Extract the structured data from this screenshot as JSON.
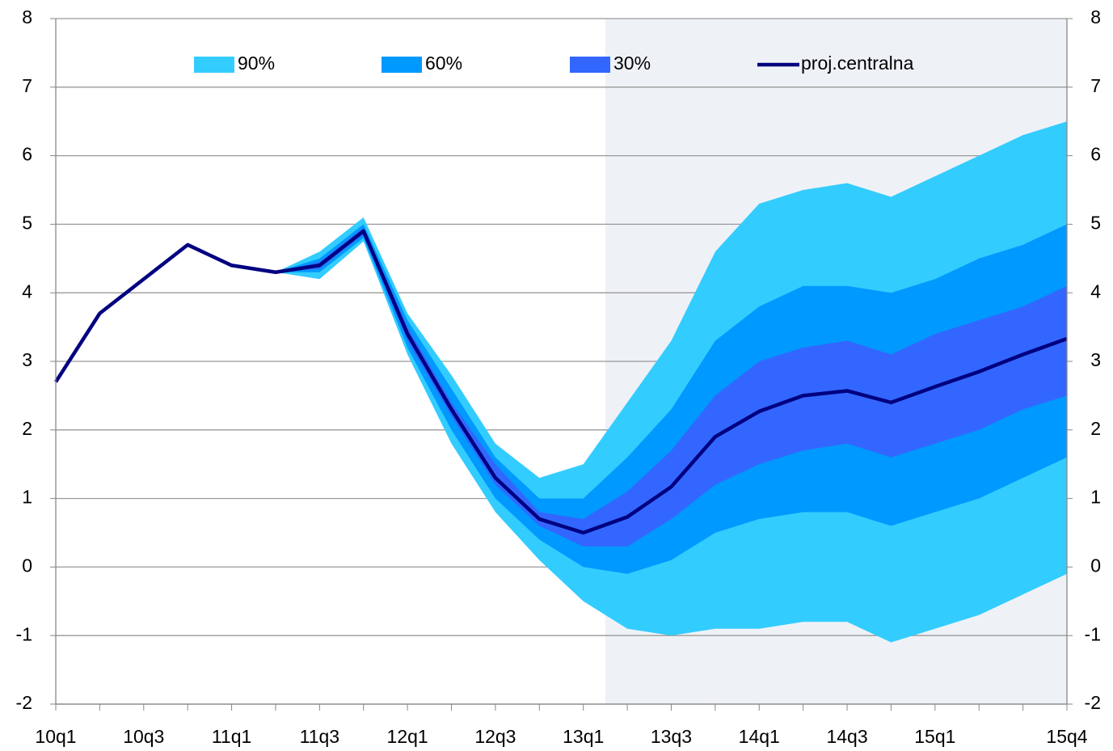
{
  "chart_data": {
    "type": "fan",
    "categories": [
      "10q1",
      null,
      "10q3",
      null,
      "11q1",
      null,
      "11q3",
      null,
      "12q1",
      null,
      "12q3",
      null,
      "13q1",
      null,
      "13q3",
      null,
      "14q1",
      null,
      "14q3",
      null,
      "15q1",
      null,
      null,
      "15q4"
    ],
    "series": [
      {
        "name": "90%",
        "type": "band",
        "color": "#33ccff",
        "lower": [
          null,
          null,
          null,
          null,
          null,
          4.3,
          4.2,
          4.75,
          3.1,
          1.8,
          0.8,
          0.1,
          -0.5,
          -0.9,
          -1.0,
          -0.9,
          -0.9,
          -0.8,
          -0.8,
          -1.1,
          -0.9,
          -0.7,
          -0.4,
          -0.1
        ],
        "upper": [
          null,
          null,
          null,
          null,
          null,
          4.3,
          4.6,
          5.1,
          3.7,
          2.8,
          1.8,
          1.3,
          1.5,
          2.4,
          3.3,
          4.6,
          5.3,
          5.5,
          5.6,
          5.4,
          5.7,
          6.0,
          6.3,
          6.5
        ]
      },
      {
        "name": "60%",
        "type": "band",
        "color": "#0099ff",
        "lower": [
          null,
          null,
          null,
          null,
          null,
          4.3,
          4.3,
          4.8,
          3.2,
          2.0,
          1.0,
          0.4,
          0.0,
          -0.1,
          0.1,
          0.5,
          0.7,
          0.8,
          0.8,
          0.6,
          0.8,
          1.0,
          1.3,
          1.6
        ],
        "upper": [
          null,
          null,
          null,
          null,
          null,
          4.3,
          4.5,
          5.0,
          3.6,
          2.6,
          1.6,
          1.0,
          1.0,
          1.6,
          2.3,
          3.3,
          3.8,
          4.1,
          4.1,
          4.0,
          4.2,
          4.5,
          4.7,
          5.0
        ]
      },
      {
        "name": "30%",
        "type": "band",
        "color": "#3366ff",
        "lower": [
          null,
          null,
          null,
          null,
          null,
          4.3,
          4.35,
          4.85,
          3.3,
          2.2,
          1.2,
          0.6,
          0.3,
          0.3,
          0.7,
          1.2,
          1.5,
          1.7,
          1.8,
          1.6,
          1.8,
          2.0,
          2.3,
          2.5
        ],
        "upper": [
          null,
          null,
          null,
          null,
          null,
          4.3,
          4.45,
          4.95,
          3.5,
          2.4,
          1.5,
          0.8,
          0.7,
          1.1,
          1.7,
          2.5,
          3.0,
          3.2,
          3.3,
          3.1,
          3.4,
          3.6,
          3.8,
          4.1
        ]
      },
      {
        "name": "proj.centralna",
        "type": "line",
        "color": "#000080",
        "values": [
          2.7,
          3.7,
          4.2,
          4.7,
          4.4,
          4.3,
          4.4,
          4.9,
          3.4,
          2.3,
          1.3,
          0.7,
          0.5,
          0.73,
          1.17,
          1.9,
          2.27,
          2.5,
          2.57,
          2.4,
          2.63,
          2.85,
          3.1,
          3.33
        ]
      }
    ],
    "shaded_from": 13,
    "shade_color": "#eef2f7",
    "ylim": [
      -2,
      8
    ],
    "yticks": [
      -2,
      -1,
      0,
      1,
      2,
      3,
      4,
      5,
      6,
      7,
      8
    ],
    "y2lim": [
      -2,
      8
    ],
    "y2ticks": [
      -2,
      -1,
      0,
      1,
      2,
      3,
      4,
      5,
      6,
      7,
      8
    ],
    "grid": true
  }
}
